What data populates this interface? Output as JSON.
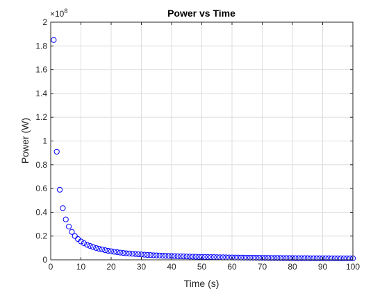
{
  "chart_data": {
    "type": "scatter",
    "title": "Power vs Time",
    "xlabel": "Time (s)",
    "ylabel": "Power (W)",
    "xlim": [
      0,
      100
    ],
    "ylim": [
      0,
      2
    ],
    "y_multiplier_label": "×10",
    "y_multiplier_exponent": "8",
    "y_scale_factor": 100000000,
    "xticks": [
      "0",
      "10",
      "20",
      "30",
      "40",
      "50",
      "60",
      "70",
      "80",
      "90",
      "100"
    ],
    "yticks": [
      "0",
      "0.2",
      "0.4",
      "0.6",
      "0.8",
      "1",
      "1.2",
      "1.4",
      "1.6",
      "1.8",
      "2"
    ],
    "grid": true,
    "marker": "open-circle",
    "marker_color": "#0000ff",
    "series": [
      {
        "x": [
          1,
          2,
          3,
          4,
          5,
          6,
          7,
          8,
          9,
          10,
          11,
          12,
          13,
          14,
          15,
          16,
          17,
          18,
          19,
          20,
          21,
          22,
          23,
          24,
          25,
          26,
          27,
          28,
          29,
          30,
          31,
          32,
          33,
          34,
          35,
          36,
          37,
          38,
          39,
          40,
          41,
          42,
          43,
          44,
          45,
          46,
          47,
          48,
          49,
          50,
          51,
          52,
          53,
          54,
          55,
          56,
          57,
          58,
          59,
          60,
          61,
          62,
          63,
          64,
          65,
          66,
          67,
          68,
          69,
          70,
          71,
          72,
          73,
          74,
          75,
          76,
          77,
          78,
          79,
          80,
          81,
          82,
          83,
          84,
          85,
          86,
          87,
          88,
          89,
          90,
          91,
          92,
          93,
          94,
          95,
          96,
          97,
          98,
          99,
          100
        ],
        "y": [
          185000000,
          91000000,
          59000000,
          43500000,
          34000000,
          28000000,
          23500000,
          20000000,
          17500000,
          15500000,
          14000000,
          12700000,
          11700000,
          10800000,
          10000000,
          9300000,
          8700000,
          8100000,
          7600000,
          7200000,
          6800000,
          6400000,
          6100000,
          5800000,
          5500000,
          5300000,
          5100000,
          4900000,
          4700000,
          4500000,
          4300000,
          4100000,
          4000000,
          3800000,
          3700000,
          3600000,
          3500000,
          3400000,
          3300000,
          3200000,
          3100000,
          3000000,
          2900000,
          2850000,
          2800000,
          2700000,
          2650000,
          2600000,
          2500000,
          2450000,
          2400000,
          2350000,
          2300000,
          2250000,
          2200000,
          2150000,
          2100000,
          2050000,
          2000000,
          1950000,
          1920000,
          1880000,
          1850000,
          1820000,
          1790000,
          1760000,
          1730000,
          1700000,
          1670000,
          1650000,
          1620000,
          1600000,
          1580000,
          1560000,
          1540000,
          1520000,
          1500000,
          1480000,
          1460000,
          1440000,
          1420000,
          1400000,
          1390000,
          1380000,
          1370000,
          1360000,
          1350000,
          1340000,
          1330000,
          1320000,
          1310000,
          1300000,
          1290000,
          1280000,
          1270000,
          1260000,
          1250000,
          1240000,
          1230000,
          1220000
        ]
      }
    ]
  }
}
